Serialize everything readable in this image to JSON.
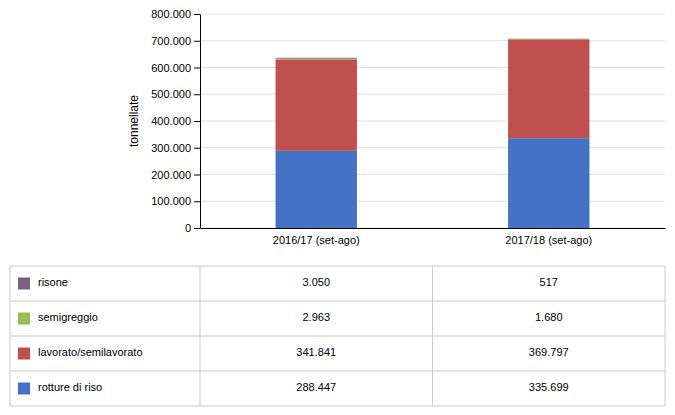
{
  "chart_data": {
    "type": "bar",
    "stacked": true,
    "grid": true,
    "legend": "bottom",
    "ylabel": "tonnellate",
    "categories": [
      "2016/17 (set-ago)",
      "2017/18 (set-ago)"
    ],
    "series": [
      {
        "name": "rotture di riso",
        "color": "#4472C4",
        "values": [
          288447,
          335699
        ],
        "value_labels": [
          "288.447",
          "335.699"
        ]
      },
      {
        "name": "lavorato/semilavorato",
        "color": "#C0504D",
        "values": [
          341841,
          369797
        ],
        "value_labels": [
          "341.841",
          "369.797"
        ]
      },
      {
        "name": "semigreggio",
        "color": "#9BBB59",
        "values": [
          2963,
          1680
        ],
        "value_labels": [
          "2.963",
          "1.680"
        ]
      },
      {
        "name": "risone",
        "color": "#7F6084",
        "values": [
          3050,
          517
        ],
        "value_labels": [
          "3.050",
          "517"
        ]
      }
    ],
    "ylim": [
      0,
      800000
    ],
    "yticks": [
      0,
      {
        "value": 100000,
        "label": "100.000"
      },
      {
        "value": 200000,
        "label": "200.000"
      },
      {
        "value": 300000,
        "label": "300.000"
      },
      {
        "value": 400000,
        "label": "400.000"
      },
      {
        "value": 500000,
        "label": "500.000"
      },
      {
        "value": 600000,
        "label": "600.000"
      },
      {
        "value": 700000,
        "label": "700.000"
      },
      {
        "value": 800000,
        "label": "800.000"
      }
    ]
  }
}
